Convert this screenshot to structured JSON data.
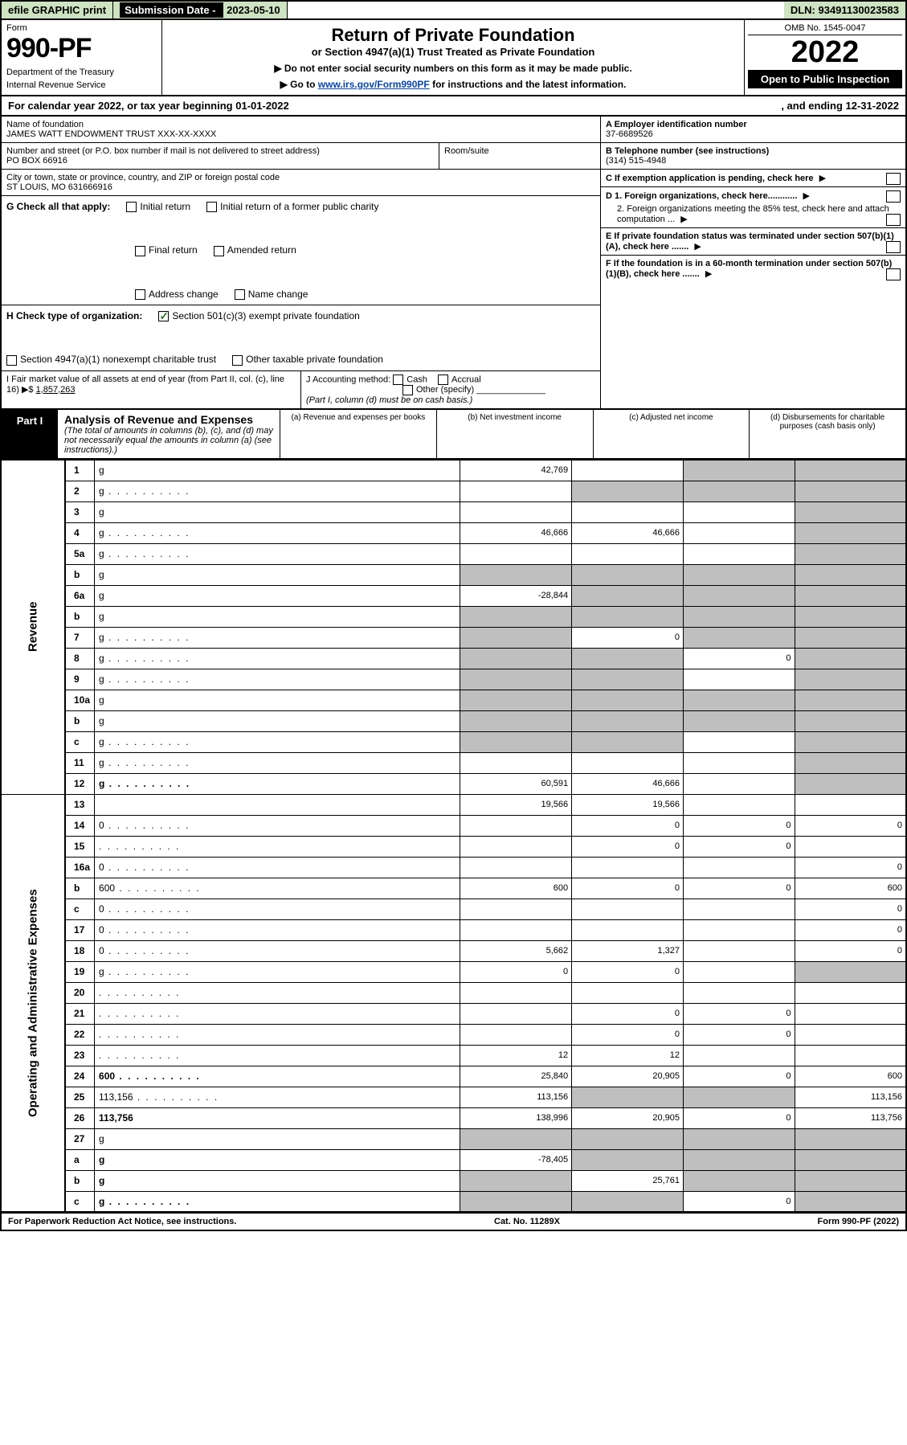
{
  "topbar": {
    "efile": "efile GRAPHIC print",
    "subdate_lbl": "Submission Date - ",
    "subdate_val": "2023-05-10",
    "dln": "DLN: 93491130023583"
  },
  "header": {
    "form_lbl": "Form",
    "form_num": "990-PF",
    "dept": "Department of the Treasury",
    "irs": "Internal Revenue Service",
    "title": "Return of Private Foundation",
    "subtitle": "or Section 4947(a)(1) Trust Treated as Private Foundation",
    "note1": "▶ Do not enter social security numbers on this form as it may be made public.",
    "note2_pre": "▶ Go to ",
    "note2_link": "www.irs.gov/Form990PF",
    "note2_post": " for instructions and the latest information.",
    "omb": "OMB No. 1545-0047",
    "year": "2022",
    "open": "Open to Public Inspection"
  },
  "calyear": {
    "pre": "For calendar year 2022, or tax year beginning ",
    "begin": "01-01-2022",
    "mid": ", and ending ",
    "end": "12-31-2022"
  },
  "info": {
    "name_lbl": "Name of foundation",
    "name": "JAMES WATT ENDOWMENT TRUST XXX-XX-XXXX",
    "street_lbl": "Number and street (or P.O. box number if mail is not delivered to street address)",
    "street": "PO BOX 66916",
    "room_lbl": "Room/suite",
    "city_lbl": "City or town, state or province, country, and ZIP or foreign postal code",
    "city": "ST LOUIS, MO  631666916",
    "a_lbl": "A Employer identification number",
    "a_val": "37-6689526",
    "b_lbl": "B Telephone number (see instructions)",
    "b_val": "(314) 515-4948",
    "c_lbl": "C If exemption application is pending, check here",
    "d1": "D 1. Foreign organizations, check here............",
    "d2": "2. Foreign organizations meeting the 85% test, check here and attach computation ...",
    "e_lbl": "E If private foundation status was terminated under section 507(b)(1)(A), check here .......",
    "f_lbl": "F If the foundation is in a 60-month termination under section 507(b)(1)(B), check here ......."
  },
  "g": {
    "lbl": "G Check all that apply:",
    "initial": "Initial return",
    "initial_pub": "Initial return of a former public charity",
    "final": "Final return",
    "amended": "Amended return",
    "addr": "Address change",
    "namechg": "Name change"
  },
  "h": {
    "lbl": "H Check type of organization:",
    "s501": "Section 501(c)(3) exempt private foundation",
    "s4947": "Section 4947(a)(1) nonexempt charitable trust",
    "other": "Other taxable private foundation"
  },
  "i": {
    "lbl": "I Fair market value of all assets at end of year (from Part II, col. (c), line 16) ▶$ ",
    "val": "1,857,263"
  },
  "j": {
    "lbl": "J Accounting method:",
    "cash": "Cash",
    "accrual": "Accrual",
    "other": "Other (specify)",
    "note": "(Part I, column (d) must be on cash basis.)"
  },
  "part1": {
    "label": "Part I",
    "title": "Analysis of Revenue and Expenses",
    "note": "(The total of amounts in columns (b), (c), and (d) may not necessarily equal the amounts in column (a) (see instructions).)",
    "col_a": "(a) Revenue and expenses per books",
    "col_b": "(b) Net investment income",
    "col_c": "(c) Adjusted net income",
    "col_d": "(d) Disbursements for charitable purposes (cash basis only)"
  },
  "sidelabels": {
    "revenue": "Revenue",
    "opex": "Operating and Administrative Expenses"
  },
  "rows": [
    {
      "n": "1",
      "d": "g",
      "a": "42,769",
      "b": "",
      "c": "g"
    },
    {
      "n": "2",
      "d": "g",
      "a": "",
      "b": "g",
      "c": "g",
      "dotted": true
    },
    {
      "n": "3",
      "d": "g",
      "a": "",
      "b": "",
      "c": ""
    },
    {
      "n": "4",
      "d": "g",
      "a": "46,666",
      "b": "46,666",
      "c": "",
      "dotted": true
    },
    {
      "n": "5a",
      "d": "g",
      "a": "",
      "b": "",
      "c": "",
      "dotted": true
    },
    {
      "n": "b",
      "d": "g",
      "a": "g",
      "b": "g",
      "c": "g"
    },
    {
      "n": "6a",
      "d": "g",
      "a": "-28,844",
      "b": "g",
      "c": "g"
    },
    {
      "n": "b",
      "d": "g",
      "a": "g",
      "b": "g",
      "c": "g"
    },
    {
      "n": "7",
      "d": "g",
      "a": "g",
      "b": "0",
      "c": "g",
      "dotted": true
    },
    {
      "n": "8",
      "d": "g",
      "a": "g",
      "b": "g",
      "c": "0",
      "dotted": true
    },
    {
      "n": "9",
      "d": "g",
      "a": "g",
      "b": "g",
      "c": "",
      "dotted": true
    },
    {
      "n": "10a",
      "d": "g",
      "a": "g",
      "b": "g",
      "c": "g"
    },
    {
      "n": "b",
      "d": "g",
      "a": "g",
      "b": "g",
      "c": "g"
    },
    {
      "n": "c",
      "d": "g",
      "a": "g",
      "b": "g",
      "c": "",
      "dotted": true
    },
    {
      "n": "11",
      "d": "g",
      "a": "",
      "b": "",
      "c": "",
      "dotted": true
    },
    {
      "n": "12",
      "d": "g",
      "a": "60,591",
      "b": "46,666",
      "c": "",
      "bold": true,
      "dotted": true
    },
    {
      "n": "13",
      "d": "",
      "a": "19,566",
      "b": "19,566",
      "c": ""
    },
    {
      "n": "14",
      "d": "0",
      "a": "",
      "b": "0",
      "c": "0",
      "dotted": true
    },
    {
      "n": "15",
      "d": "",
      "a": "",
      "b": "0",
      "c": "0",
      "dotted": true
    },
    {
      "n": "16a",
      "d": "0",
      "a": "",
      "b": "",
      "c": "",
      "dotted": true
    },
    {
      "n": "b",
      "d": "600",
      "a": "600",
      "b": "0",
      "c": "0",
      "dotted": true
    },
    {
      "n": "c",
      "d": "0",
      "a": "",
      "b": "",
      "c": "",
      "dotted": true
    },
    {
      "n": "17",
      "d": "0",
      "a": "",
      "b": "",
      "c": "",
      "dotted": true
    },
    {
      "n": "18",
      "d": "0",
      "a": "5,662",
      "b": "1,327",
      "c": "",
      "dotted": true
    },
    {
      "n": "19",
      "d": "g",
      "a": "0",
      "b": "0",
      "c": "",
      "dotted": true
    },
    {
      "n": "20",
      "d": "",
      "a": "",
      "b": "",
      "c": "",
      "dotted": true
    },
    {
      "n": "21",
      "d": "",
      "a": "",
      "b": "0",
      "c": "0",
      "dotted": true
    },
    {
      "n": "22",
      "d": "",
      "a": "",
      "b": "0",
      "c": "0",
      "dotted": true
    },
    {
      "n": "23",
      "d": "",
      "a": "12",
      "b": "12",
      "c": "",
      "dotted": true
    },
    {
      "n": "24",
      "d": "600",
      "a": "25,840",
      "b": "20,905",
      "c": "0",
      "bold": true,
      "dotted": true
    },
    {
      "n": "25",
      "d": "113,156",
      "a": "113,156",
      "b": "g",
      "c": "g",
      "dotted": true
    },
    {
      "n": "26",
      "d": "113,756",
      "a": "138,996",
      "b": "20,905",
      "c": "0",
      "bold": true
    },
    {
      "n": "27",
      "d": "g",
      "a": "g",
      "b": "g",
      "c": "g"
    },
    {
      "n": "a",
      "d": "g",
      "a": "-78,405",
      "b": "g",
      "c": "g",
      "bold": true
    },
    {
      "n": "b",
      "d": "g",
      "a": "g",
      "b": "25,761",
      "c": "g",
      "bold": true
    },
    {
      "n": "c",
      "d": "g",
      "a": "g",
      "b": "g",
      "c": "0",
      "bold": true,
      "dotted": true
    }
  ],
  "footer": {
    "left": "For Paperwork Reduction Act Notice, see instructions.",
    "mid": "Cat. No. 11289X",
    "right": "Form 990-PF (2022)"
  },
  "colors": {
    "green_bg": "#cde3c1",
    "grey_cell": "#bfbfbf",
    "link": "#0645ad"
  }
}
